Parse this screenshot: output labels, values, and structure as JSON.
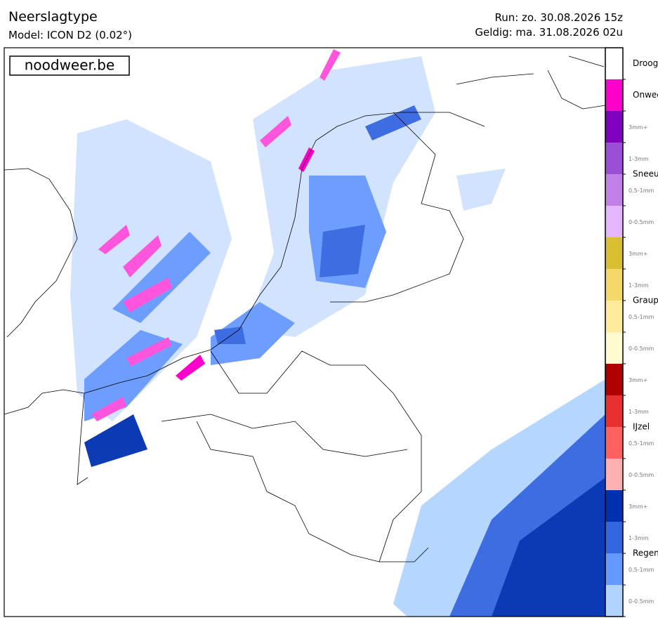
{
  "header": {
    "title": "Neerslagtype",
    "model": "Model: ICON D2 (0.02°)",
    "run": "Run: zo. 30.08.2026 15z",
    "valid": "Geldig: ma. 31.08.2026 02u"
  },
  "watermark": "noodweer.be",
  "legend": {
    "classes": [
      {
        "name": "Droog",
        "levels": [
          {
            "color": "#ffffff"
          }
        ]
      },
      {
        "name": "Onweer",
        "levels": [
          {
            "color": "#ff00cc"
          }
        ]
      },
      {
        "name": "Sneeuw",
        "levels": [
          {
            "label": "3mm+",
            "color": "#8000c0"
          },
          {
            "label": "1-3mm",
            "color": "#9b4fd6"
          },
          {
            "label": "0.5-1mm",
            "color": "#c080e8"
          },
          {
            "label": "0-0.5mm",
            "color": "#e5b5ff"
          }
        ]
      },
      {
        "name": "Graupel",
        "levels": [
          {
            "label": "3mm+",
            "color": "#d8c030"
          },
          {
            "label": "1-3mm",
            "color": "#f2d96a"
          },
          {
            "label": "0.5-1mm",
            "color": "#ffe99a"
          },
          {
            "label": "0-0.5mm",
            "color": "#fffacf"
          }
        ]
      },
      {
        "name": "IJzel",
        "levels": [
          {
            "label": "3mm+",
            "color": "#b00000"
          },
          {
            "label": "1-3mm",
            "color": "#e83030"
          },
          {
            "label": "0.5-1mm",
            "color": "#ff6060"
          },
          {
            "label": "0-0.5mm",
            "color": "#ffb0b0"
          }
        ]
      },
      {
        "name": "Regen",
        "levels": [
          {
            "label": "3mm+",
            "color": "#0030b0"
          },
          {
            "label": "1-3mm",
            "color": "#3366e0"
          },
          {
            "label": "0.5-1mm",
            "color": "#6699ff"
          },
          {
            "label": "0-0.5mm",
            "color": "#b0d4ff"
          }
        ]
      }
    ]
  }
}
